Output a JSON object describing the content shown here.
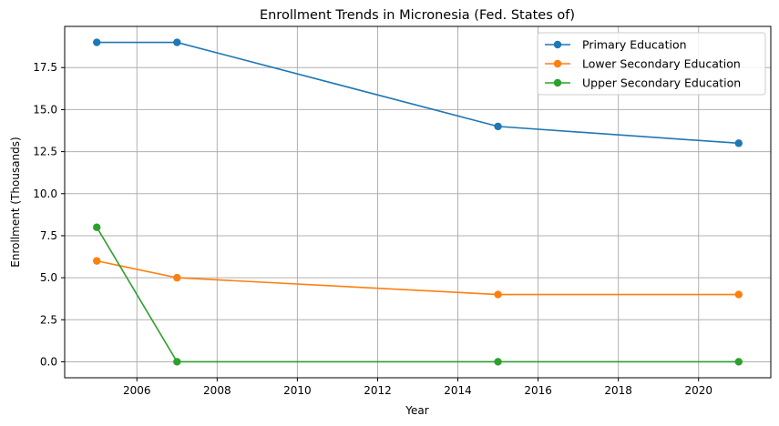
{
  "chart_data": {
    "type": "line",
    "title": "Enrollment Trends in Micronesia (Fed. States of)",
    "xlabel": "Year",
    "ylabel": "Enrollment (Thousands)",
    "xlim": [
      2004.2,
      2021.8
    ],
    "ylim": [
      -0.95,
      19.95
    ],
    "xticks": [
      2006,
      2008,
      2010,
      2012,
      2014,
      2016,
      2018,
      2020
    ],
    "yticks": [
      0.0,
      2.5,
      5.0,
      7.5,
      10.0,
      12.5,
      15.0,
      17.5
    ],
    "ytick_labels": [
      "0.0",
      "2.5",
      "5.0",
      "7.5",
      "10.0",
      "12.5",
      "15.0",
      "17.5"
    ],
    "grid": true,
    "legend_position": "top-right",
    "x": [
      2005,
      2007,
      2015,
      2021
    ],
    "series": [
      {
        "name": "Primary Education",
        "values": [
          19,
          19,
          14,
          13
        ],
        "color": "#1f77b4"
      },
      {
        "name": "Lower Secondary Education",
        "values": [
          6,
          5,
          4,
          4
        ],
        "color": "#ff7f0e"
      },
      {
        "name": "Upper Secondary Education",
        "values": [
          8,
          0,
          0,
          0
        ],
        "color": "#2ca02c"
      }
    ]
  }
}
